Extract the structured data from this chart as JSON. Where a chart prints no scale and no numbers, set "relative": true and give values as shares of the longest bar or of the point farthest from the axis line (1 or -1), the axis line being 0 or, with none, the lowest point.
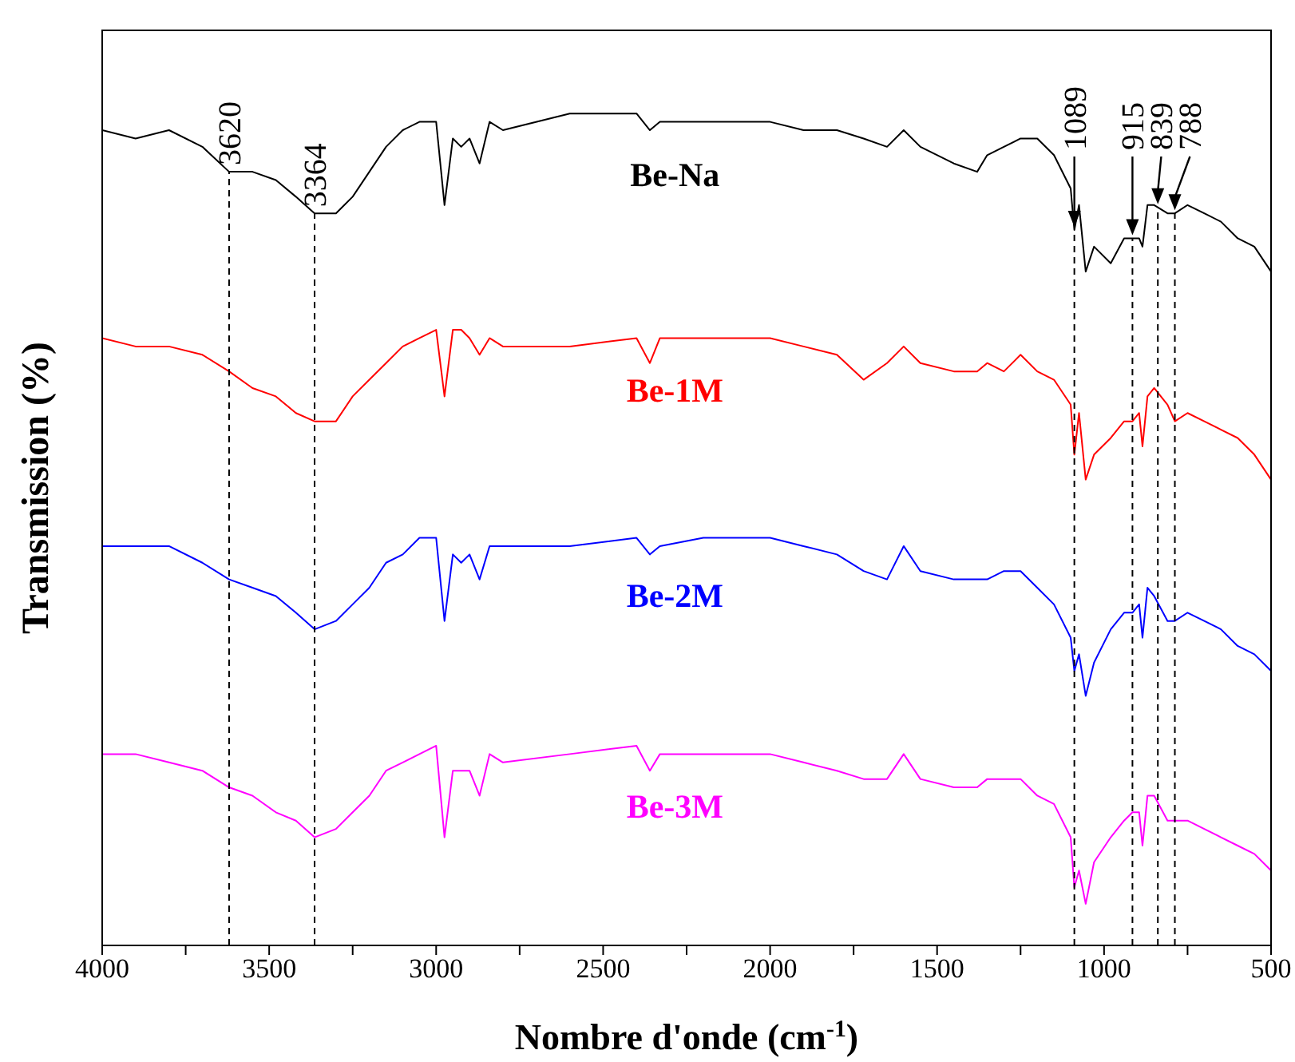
{
  "chart_data": {
    "type": "line",
    "xlabel": "Nombre d'onde (cm$^{-1}$)",
    "ylabel": "Transmission (%)",
    "relative": true,
    "xlim": [
      4000,
      500
    ],
    "xticks": [
      4000,
      {
        "value": 3750,
        "label": null
      },
      3500,
      {
        "value": 3250,
        "label": null
      },
      3000,
      {
        "value": 2750,
        "label": null
      },
      2500,
      {
        "value": 2250,
        "label": null
      },
      2000,
      {
        "value": 1750,
        "label": null
      },
      1500,
      {
        "value": 1250,
        "label": null
      },
      1000,
      {
        "value": 750,
        "label": null
      },
      500
    ],
    "x": [
      4000,
      3900,
      3800,
      3700,
      3620,
      3550,
      3480,
      3420,
      3364,
      3300,
      3250,
      3200,
      3150,
      3100,
      3050,
      3000,
      2975,
      2950,
      2925,
      2900,
      2870,
      2840,
      2800,
      2600,
      2400,
      2360,
      2330,
      2200,
      2000,
      1900,
      1800,
      1720,
      1650,
      1600,
      1550,
      1450,
      1380,
      1350,
      1300,
      1250,
      1200,
      1150,
      1100,
      1089,
      1075,
      1055,
      1030,
      980,
      940,
      915,
      895,
      885,
      870,
      850,
      810,
      788,
      750,
      700,
      650,
      600,
      550,
      500
    ],
    "series": [
      {
        "name": "Be-Na",
        "color": "#000000",
        "values": [
          0.98,
          0.97,
          0.98,
          0.96,
          0.93,
          0.93,
          0.92,
          0.9,
          0.88,
          0.88,
          0.9,
          0.93,
          0.96,
          0.98,
          0.99,
          0.99,
          0.89,
          0.97,
          0.96,
          0.97,
          0.94,
          0.99,
          0.98,
          1.0,
          1.0,
          0.98,
          0.99,
          0.99,
          0.99,
          0.98,
          0.98,
          0.97,
          0.96,
          0.98,
          0.96,
          0.94,
          0.93,
          0.95,
          0.96,
          0.97,
          0.97,
          0.95,
          0.91,
          0.86,
          0.89,
          0.81,
          0.84,
          0.82,
          0.85,
          0.85,
          0.85,
          0.84,
          0.89,
          0.89,
          0.88,
          0.88,
          0.89,
          0.88,
          0.87,
          0.85,
          0.84,
          0.81
        ]
      },
      {
        "name": "Be-1M",
        "color": "#ff0000",
        "values": [
          0.73,
          0.72,
          0.72,
          0.71,
          0.69,
          0.67,
          0.66,
          0.64,
          0.63,
          0.63,
          0.66,
          0.68,
          0.7,
          0.72,
          0.73,
          0.74,
          0.66,
          0.74,
          0.74,
          0.73,
          0.71,
          0.73,
          0.72,
          0.72,
          0.73,
          0.7,
          0.73,
          0.73,
          0.73,
          0.72,
          0.71,
          0.68,
          0.7,
          0.72,
          0.7,
          0.69,
          0.69,
          0.7,
          0.69,
          0.71,
          0.69,
          0.68,
          0.65,
          0.59,
          0.64,
          0.56,
          0.59,
          0.61,
          0.63,
          0.63,
          0.64,
          0.6,
          0.66,
          0.67,
          0.65,
          0.63,
          0.64,
          0.63,
          0.62,
          0.61,
          0.59,
          0.56
        ]
      },
      {
        "name": "Be-2M",
        "color": "#0000ff",
        "values": [
          0.48,
          0.48,
          0.48,
          0.46,
          0.44,
          0.43,
          0.42,
          0.4,
          0.38,
          0.39,
          0.41,
          0.43,
          0.46,
          0.47,
          0.49,
          0.49,
          0.39,
          0.47,
          0.46,
          0.47,
          0.44,
          0.48,
          0.48,
          0.48,
          0.49,
          0.47,
          0.48,
          0.49,
          0.49,
          0.48,
          0.47,
          0.45,
          0.44,
          0.48,
          0.45,
          0.44,
          0.44,
          0.44,
          0.45,
          0.45,
          0.43,
          0.41,
          0.37,
          0.33,
          0.35,
          0.3,
          0.34,
          0.38,
          0.4,
          0.4,
          0.41,
          0.37,
          0.43,
          0.42,
          0.39,
          0.39,
          0.4,
          0.39,
          0.38,
          0.36,
          0.35,
          0.33
        ]
      },
      {
        "name": "Be-3M",
        "color": "#ff00ff",
        "values": [
          0.23,
          0.23,
          0.22,
          0.21,
          0.19,
          0.18,
          0.16,
          0.15,
          0.13,
          0.14,
          0.16,
          0.18,
          0.21,
          0.22,
          0.23,
          0.24,
          0.13,
          0.21,
          0.21,
          0.21,
          0.18,
          0.23,
          0.22,
          0.23,
          0.24,
          0.21,
          0.23,
          0.23,
          0.23,
          0.22,
          0.21,
          0.2,
          0.2,
          0.23,
          0.2,
          0.19,
          0.19,
          0.2,
          0.2,
          0.2,
          0.18,
          0.17,
          0.13,
          0.07,
          0.09,
          0.05,
          0.1,
          0.13,
          0.15,
          0.16,
          0.16,
          0.12,
          0.18,
          0.18,
          0.15,
          0.15,
          0.15,
          0.14,
          0.13,
          0.12,
          0.11,
          0.09
        ]
      }
    ],
    "ref_lines": [
      {
        "axis": "x",
        "value": 3620,
        "label": "3620",
        "color": "#000000",
        "line_style": "dashed"
      },
      {
        "axis": "x",
        "value": 3364,
        "label": "3364",
        "color": "#000000",
        "line_style": "dashed"
      },
      {
        "axis": "x",
        "value": 1089,
        "label": "1089",
        "color": "#000000",
        "line_style": "dashed"
      },
      {
        "axis": "x",
        "value": 915,
        "label": "915",
        "color": "#000000",
        "line_style": "dashed"
      },
      {
        "axis": "x",
        "value": 839,
        "label": "839",
        "color": "#000000",
        "line_style": "dashed"
      },
      {
        "axis": "x",
        "value": 788,
        "label": "788",
        "color": "#000000",
        "line_style": "dashed"
      }
    ]
  }
}
